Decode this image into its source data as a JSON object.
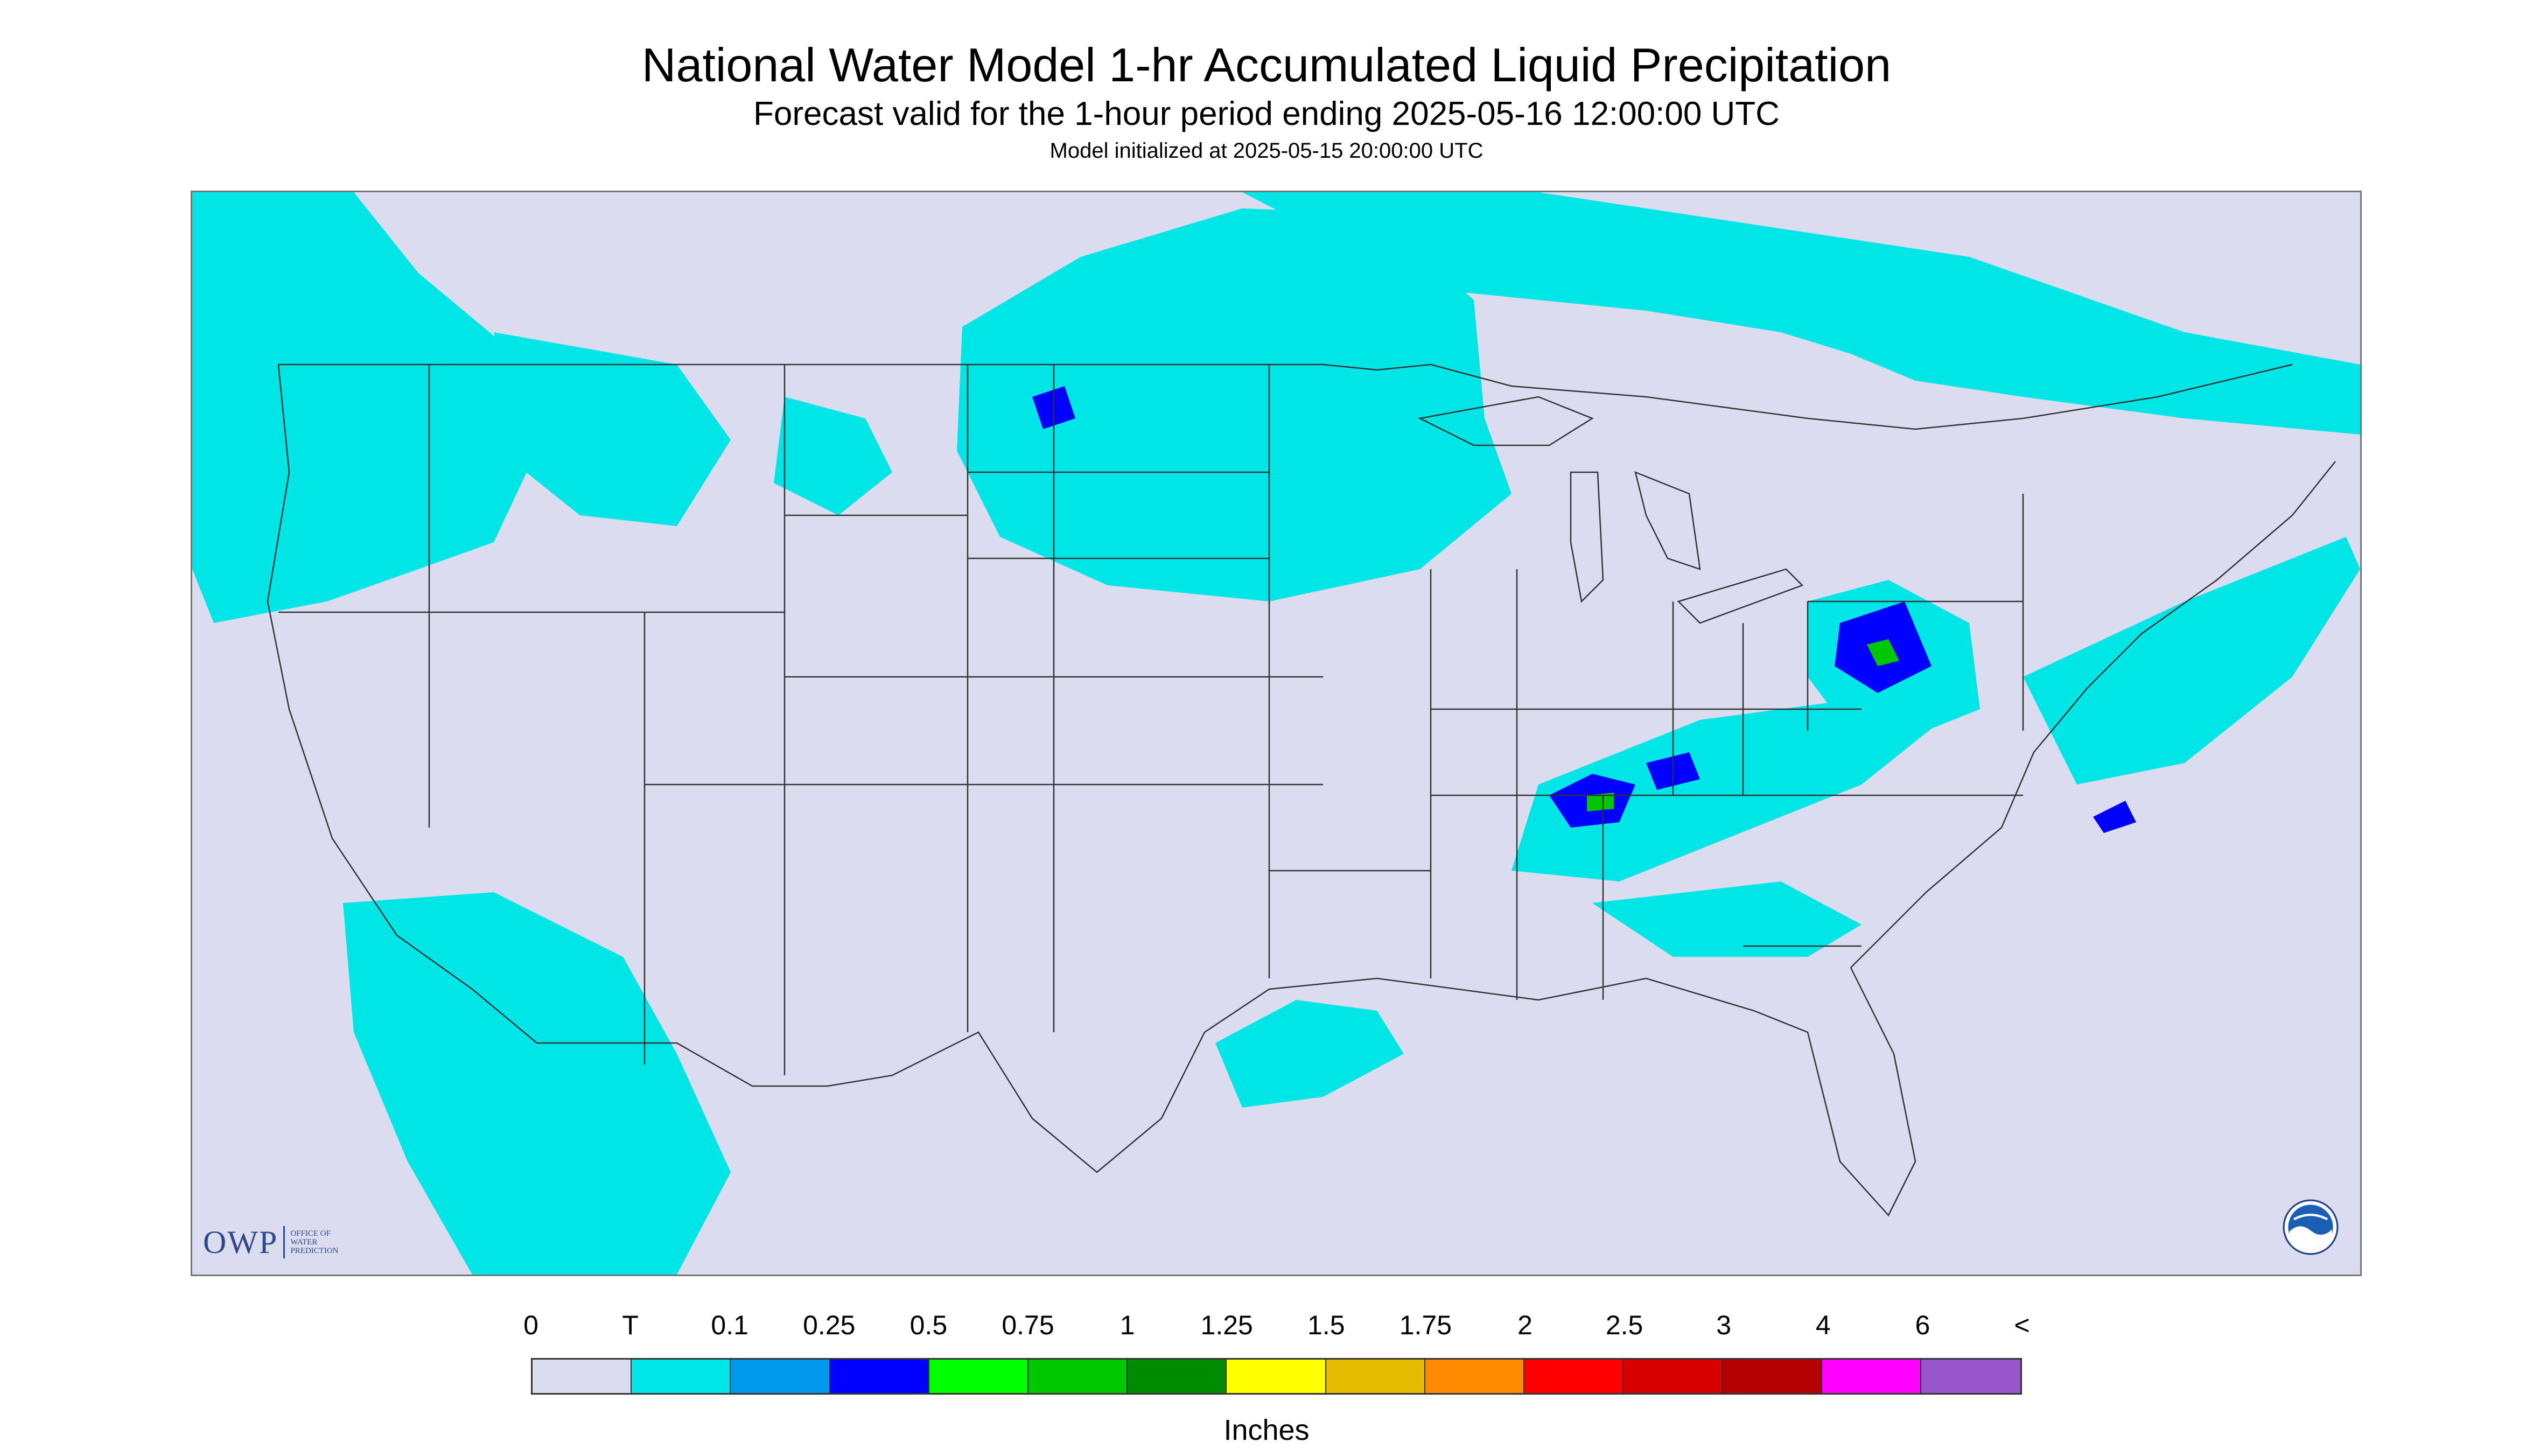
{
  "header": {
    "title": "National Water Model 1-hr Accumulated Liquid Precipitation",
    "subtitle": "Forecast valid for the 1-hour period ending 2025-05-16 12:00:00 UTC",
    "note": "Model initialized at 2025-05-15 20:00:00 UTC"
  },
  "logos": {
    "owp_main": "OWP",
    "owp_sub_1": "OFFICE OF",
    "owp_sub_2": "WATER",
    "owp_sub_3": "PREDICTION",
    "noaa_icon": "noaa-seal-icon"
  },
  "legend": {
    "tick_labels": [
      "0",
      "T",
      "0.1",
      "0.25",
      "0.5",
      "0.75",
      "1",
      "1.25",
      "1.5",
      "1.75",
      "2",
      "2.5",
      "3",
      "4",
      "6",
      "<"
    ],
    "colors": [
      "#dcdcf0",
      "#00e5e5",
      "#0099ee",
      "#0000ff",
      "#00ff00",
      "#00c800",
      "#008c00",
      "#ffff00",
      "#e5bc00",
      "#ff8c00",
      "#ff0000",
      "#d80000",
      "#b40000",
      "#ff00ff",
      "#9955cc"
    ],
    "units": "Inches"
  },
  "map_colors": {
    "background": "#dcdcf0",
    "outside_domain": "#ffffff",
    "trace": "#00e5e5",
    "light": "#0099ee",
    "moderate": "#0000ff",
    "heavy": "#00c800",
    "very_heavy": "#ffff00",
    "borders": "#333333"
  }
}
